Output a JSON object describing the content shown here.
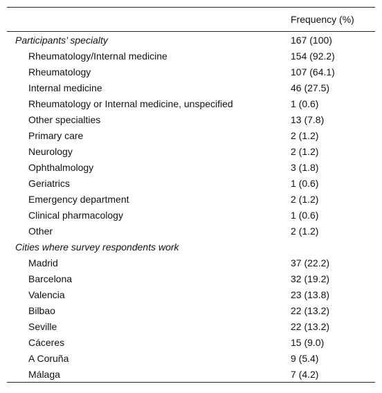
{
  "table": {
    "header": {
      "label": "",
      "frequency": "Frequency (%)"
    },
    "rows": [
      {
        "label": "Participants’ specialty",
        "value": "167 (100)",
        "kind": "section"
      },
      {
        "label": "Rheumatology/Internal medicine",
        "value": "154 (92.2)",
        "kind": "item"
      },
      {
        "label": "Rheumatology",
        "value": "107 (64.1)",
        "kind": "item"
      },
      {
        "label": "Internal medicine",
        "value": "46 (27.5)",
        "kind": "item"
      },
      {
        "label": "Rheumatology or Internal medicine, unspecified",
        "value": "1 (0.6)",
        "kind": "item"
      },
      {
        "label": "Other specialties",
        "value": "13 (7.8)",
        "kind": "item"
      },
      {
        "label": "Primary care",
        "value": "2 (1.2)",
        "kind": "item"
      },
      {
        "label": "Neurology",
        "value": "2 (1.2)",
        "kind": "item"
      },
      {
        "label": "Ophthalmology",
        "value": "3 (1.8)",
        "kind": "item"
      },
      {
        "label": "Geriatrics",
        "value": "1 (0.6)",
        "kind": "item"
      },
      {
        "label": "Emergency department",
        "value": "2 (1.2)",
        "kind": "item"
      },
      {
        "label": "Clinical pharmacology",
        "value": "1 (0.6)",
        "kind": "item"
      },
      {
        "label": "Other",
        "value": "2 (1.2)",
        "kind": "item"
      },
      {
        "label": "Cities where survey respondents work",
        "value": "",
        "kind": "section"
      },
      {
        "label": "Madrid",
        "value": "37 (22.2)",
        "kind": "item"
      },
      {
        "label": "Barcelona",
        "value": "32 (19.2)",
        "kind": "item"
      },
      {
        "label": "Valencia",
        "value": "23 (13.8)",
        "kind": "item"
      },
      {
        "label": "Bilbao",
        "value": "22 (13.2)",
        "kind": "item"
      },
      {
        "label": "Seville",
        "value": "22 (13.2)",
        "kind": "item"
      },
      {
        "label": "Cáceres",
        "value": "15 (9.0)",
        "kind": "item"
      },
      {
        "label": "A Coruña",
        "value": "9 (5.4)",
        "kind": "item"
      },
      {
        "label": "Málaga",
        "value": "7 (4.2)",
        "kind": "item"
      }
    ]
  }
}
